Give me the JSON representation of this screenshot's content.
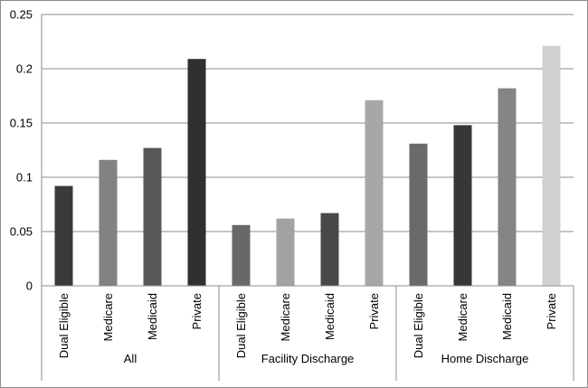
{
  "chart_data": {
    "type": "bar",
    "title": "",
    "xlabel": "",
    "ylabel": "",
    "ylim": [
      0,
      0.25
    ],
    "yticks": [
      "0",
      "0.05",
      "0.1",
      "0.15",
      "0.2",
      "0.25"
    ],
    "grid": true,
    "legend": "none",
    "groups": [
      {
        "name": "All",
        "categories": [
          "Dual Eligible",
          "Medicare",
          "Medicaid",
          "Private"
        ],
        "values": [
          0.092,
          0.116,
          0.127,
          0.209
        ],
        "colors": [
          "#3a3a3a",
          "#828282",
          "#575757",
          "#303030"
        ]
      },
      {
        "name": "Facility Discharge",
        "categories": [
          "Dual Eligible",
          "Medicare",
          "Medicaid",
          "Private"
        ],
        "values": [
          0.056,
          0.062,
          0.067,
          0.171
        ],
        "colors": [
          "#686868",
          "#a2a2a2",
          "#484848",
          "#a7a7a7"
        ]
      },
      {
        "name": "Home Discharge",
        "categories": [
          "Dual Eligible",
          "Medicare",
          "Medicaid",
          "Private"
        ],
        "values": [
          0.131,
          0.148,
          0.182,
          0.221
        ],
        "colors": [
          "#6a6a6a",
          "#373737",
          "#858585",
          "#d0d0d0"
        ]
      }
    ]
  }
}
